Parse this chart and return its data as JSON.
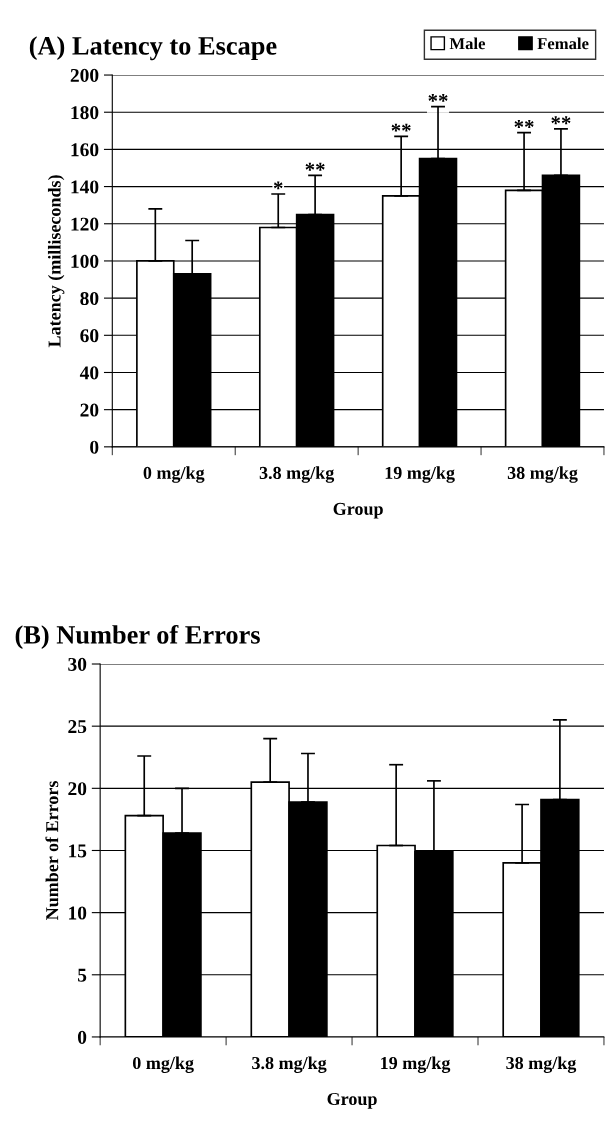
{
  "chart_data": [
    {
      "type": "bar",
      "title": "(A) Latency to Escape",
      "xlabel": "Group",
      "ylabel": "Latency (milliseconds)",
      "categories": [
        "0 mg/kg",
        "3.8 mg/kg",
        "19 mg/kg",
        "38 mg/kg"
      ],
      "series": [
        {
          "name": "Male",
          "color": "#ffffff",
          "values": [
            100,
            118,
            135,
            138
          ],
          "errors": [
            [
              100,
              128
            ],
            [
              118,
              136
            ],
            [
              135,
              167
            ],
            [
              138,
              169
            ]
          ],
          "value_labels": [
            null,
            "*",
            "**",
            "**"
          ]
        },
        {
          "name": "Female",
          "color": "#000000",
          "values": [
            93,
            125,
            155,
            146
          ],
          "errors": [
            [
              93,
              111
            ],
            [
              125,
              146
            ],
            [
              155,
              183
            ],
            [
              146,
              171
            ]
          ],
          "value_labels": [
            null,
            "**",
            "**",
            "**"
          ]
        }
      ],
      "ylim": [
        0,
        200
      ],
      "yticks": [
        0,
        20,
        40,
        60,
        80,
        100,
        120,
        140,
        160,
        180,
        200
      ],
      "grid": "y",
      "legend": "top right"
    },
    {
      "type": "bar",
      "title": "(B) Number of Errors",
      "xlabel": "Group",
      "ylabel": "Number of Errors",
      "categories": [
        "0 mg/kg",
        "3.8 mg/kg",
        "19 mg/kg",
        "38 mg/kg"
      ],
      "series": [
        {
          "color": "#ffffff",
          "values": [
            17.8,
            20.5,
            15.4,
            14.0
          ],
          "errors": [
            [
              17.8,
              22.6
            ],
            [
              20.5,
              24.0
            ],
            [
              15.4,
              21.9
            ],
            [
              14.0,
              18.7
            ]
          ]
        },
        {
          "color": "#000000",
          "values": [
            16.4,
            18.9,
            14.9,
            19.1
          ],
          "errors": [
            [
              16.4,
              20.0
            ],
            [
              18.9,
              22.8
            ],
            [
              14.9,
              20.6
            ],
            [
              19.1,
              25.5
            ]
          ]
        }
      ],
      "ylim": [
        0,
        30
      ],
      "yticks": [
        0,
        5,
        10,
        15,
        20,
        25,
        30
      ],
      "grid": "y"
    }
  ]
}
